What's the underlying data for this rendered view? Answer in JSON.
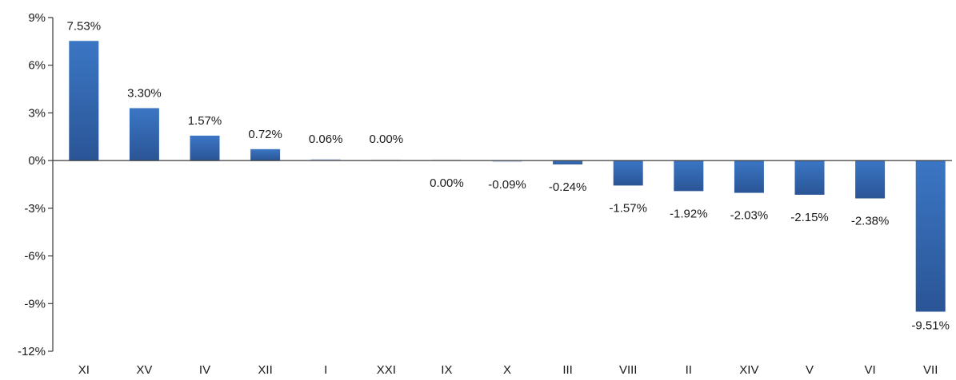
{
  "chart_data": {
    "type": "bar",
    "title": "",
    "xlabel": "",
    "ylabel": "",
    "categories": [
      "XI",
      "XV",
      "IV",
      "XII",
      "I",
      "XXI",
      "IX",
      "X",
      "III",
      "VIII",
      "II",
      "XIV",
      "V",
      "VI",
      "VII"
    ],
    "values": [
      7.53,
      3.3,
      1.57,
      0.72,
      0.06,
      0.0,
      0.0,
      -0.09,
      -0.24,
      -1.57,
      -1.92,
      -2.03,
      -2.15,
      -2.38,
      -9.51
    ],
    "data_labels": [
      "7.53%",
      "3.30%",
      "1.57%",
      "0.72%",
      "0.06%",
      "0.00%",
      "0.00%",
      "-0.09%",
      "-0.24%",
      "-1.57%",
      "-1.92%",
      "-2.03%",
      "-2.15%",
      "-2.38%",
      "-9.51%"
    ],
    "ylim": [
      -12,
      9
    ],
    "yticks": [
      9,
      6,
      3,
      0,
      -3,
      -6,
      -9,
      -12
    ],
    "ytick_labels": [
      "9%",
      "6%",
      "3%",
      "0%",
      "-3%",
      "-6%",
      "-9%",
      "-12%"
    ],
    "grid": false,
    "legend": "none",
    "bar_color": "#3b76c4",
    "bar_color_dark": "#2a5596"
  }
}
